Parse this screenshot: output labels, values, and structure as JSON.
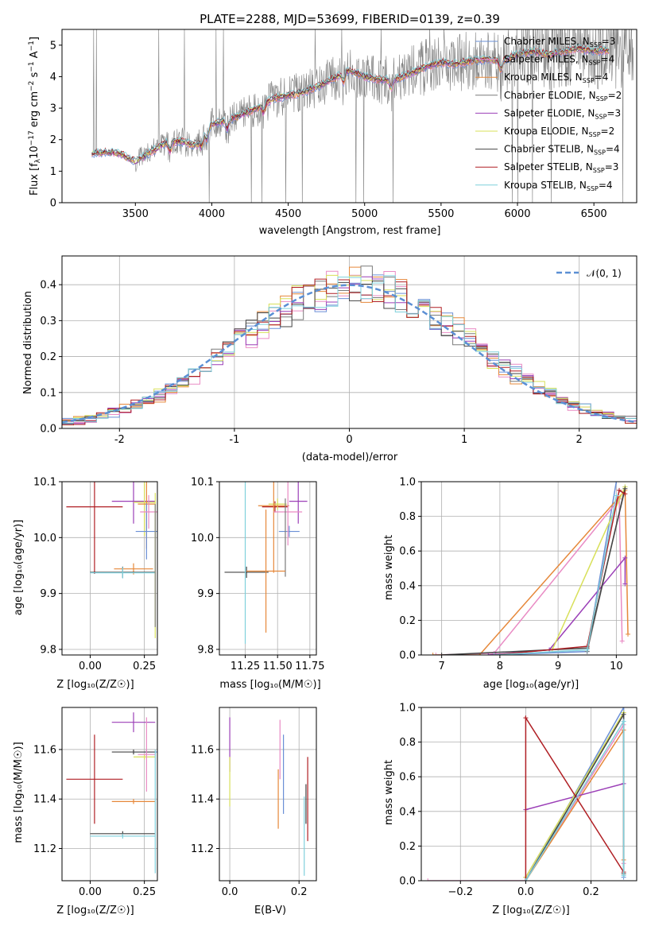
{
  "chart_data": [
    {
      "id": "spectrum",
      "type": "line",
      "title": "PLATE=2288, MJD=53699, FIBERID=0139, z=0.39",
      "xlabel": "wavelength [Angstrom, rest frame]",
      "ylabel_parts": [
        "Flux [f",
        "λ",
        "10",
        "−17",
        " erg cm",
        "−2",
        " s",
        "−1",
        " A",
        "−1",
        "]"
      ],
      "xlim": [
        3020,
        6780
      ],
      "ylim": [
        0,
        5.5
      ],
      "xticks": [
        3500,
        4000,
        4500,
        5000,
        5500,
        6000,
        6500
      ],
      "yticks": [
        0,
        1,
        2,
        3,
        4,
        5
      ],
      "grid": false,
      "legend_position": "right",
      "continuum": [
        [
          3220,
          1.55
        ],
        [
          3300,
          1.6
        ],
        [
          3400,
          1.55
        ],
        [
          3500,
          1.3
        ],
        [
          3600,
          1.6
        ],
        [
          3700,
          1.9
        ],
        [
          3800,
          1.95
        ],
        [
          3900,
          1.8
        ],
        [
          4000,
          2.5
        ],
        [
          4100,
          2.6
        ],
        [
          4200,
          2.8
        ],
        [
          4300,
          3.0
        ],
        [
          4400,
          3.3
        ],
        [
          4500,
          3.4
        ],
        [
          4600,
          3.5
        ],
        [
          4700,
          3.7
        ],
        [
          4800,
          3.95
        ],
        [
          4900,
          4.2
        ],
        [
          5000,
          4.0
        ],
        [
          5100,
          3.9
        ],
        [
          5200,
          3.9
        ],
        [
          5300,
          4.1
        ],
        [
          5400,
          4.3
        ],
        [
          5500,
          4.45
        ],
        [
          5600,
          4.4
        ],
        [
          5700,
          4.5
        ],
        [
          5800,
          4.55
        ],
        [
          5900,
          4.5
        ],
        [
          6000,
          4.7
        ],
        [
          6100,
          4.8
        ],
        [
          6200,
          4.7
        ],
        [
          6300,
          4.8
        ],
        [
          6400,
          4.9
        ],
        [
          6500,
          4.8
        ],
        [
          6600,
          4.85
        ]
      ],
      "series": [
        {
          "name": "Chabrier MILES, N",
          "sub": "SSP",
          "tail": "=3",
          "color": "#6a8fd6"
        },
        {
          "name": "Salpeter MILES, N",
          "sub": "SSP",
          "tail": "=4",
          "color": "#e98bc4"
        },
        {
          "name": "Kroupa MILES, N",
          "sub": "SSP",
          "tail": "=4",
          "color": "#e6883a"
        },
        {
          "name": "Chabrier ELODIE, N",
          "sub": "SSP",
          "tail": "=2",
          "color": "#7a7a7a"
        },
        {
          "name": "Salpeter ELODIE, N",
          "sub": "SSP",
          "tail": "=3",
          "color": "#9b3fb7"
        },
        {
          "name": "Kroupa ELODIE, N",
          "sub": "SSP",
          "tail": "=2",
          "color": "#d8e05a"
        },
        {
          "name": "Chabrier STELIB, N",
          "sub": "SSP",
          "tail": "=4",
          "color": "#444444"
        },
        {
          "name": "Salpeter STELIB, N",
          "sub": "SSP",
          "tail": "=3",
          "color": "#b01f24"
        },
        {
          "name": "Kroupa STELIB, N",
          "sub": "SSP",
          "tail": "=4",
          "color": "#7fd0dc"
        }
      ]
    },
    {
      "id": "residuals",
      "type": "line",
      "xlabel": "(data-model)/error",
      "ylabel": "Normed distribution",
      "xlim": [
        -2.5,
        2.5
      ],
      "ylim": [
        0,
        0.48
      ],
      "xticks": [
        -2,
        -1,
        0,
        1,
        2
      ],
      "yticks": [
        0.0,
        0.1,
        0.2,
        0.3,
        0.4
      ],
      "ytick_labels": [
        "0.0",
        "0.1",
        "0.2",
        "0.3",
        "0.4"
      ],
      "grid": true,
      "legend_position": "top-right",
      "legend": [
        "𝒩(0, 1)"
      ],
      "gauss_color": "#5b8fd4",
      "bin_width": 0.1
    },
    {
      "id": "age-vs-Z",
      "type": "scatter",
      "xlabel": "Z [log₁₀(Z/Z☉)]",
      "ylabel": "age  [log₁₀(age/yr)]",
      "xlim": [
        -0.13,
        0.31
      ],
      "ylim": [
        9.79,
        10.1
      ],
      "xticks": [
        0.0,
        0.25
      ],
      "xtick_labels": [
        "0.00",
        "0.25"
      ],
      "yticks": [
        9.8,
        9.9,
        10.0,
        10.1
      ],
      "ytick_labels": [
        "9.8",
        "9.9",
        "10.0",
        "10.1"
      ],
      "grid": true,
      "points": [
        {
          "x": 0.02,
          "y": 10.055,
          "xerr": 0.13,
          "yerr": 0.12,
          "c": 7
        },
        {
          "x": 0.2,
          "y": 10.065,
          "xerr": 0.1,
          "yerr": 0.04,
          "c": 4
        },
        {
          "x": 0.25,
          "y": 10.063,
          "xerr": 0.05,
          "yerr": 0.06,
          "c": 5
        },
        {
          "x": 0.26,
          "y": 10.06,
          "xerr": 0.04,
          "yerr": 0.08,
          "c": 2
        },
        {
          "x": 0.26,
          "y": 10.011,
          "xerr": 0.05,
          "yerr": 0.05,
          "c": 0
        },
        {
          "x": 0.27,
          "y": 10.046,
          "xerr": 0.04,
          "yerr": 0.03,
          "c": 1
        },
        {
          "x": 0.2,
          "y": 9.944,
          "xerr": 0.09,
          "yerr": 0.01,
          "c": 2
        },
        {
          "x": 0.15,
          "y": 9.938,
          "xerr": 0.15,
          "yerr": 0.01,
          "c": 6
        },
        {
          "x": 0.15,
          "y": 9.937,
          "xerr": 0.15,
          "yerr": 0.01,
          "c": 8
        },
        {
          "x": 0.3,
          "y": 9.95,
          "xerr": 0.0,
          "yerr": 0.13,
          "c": 5
        },
        {
          "x": 0.3,
          "y": 9.95,
          "xerr": 0.0,
          "yerr": 0.11,
          "c": 3
        }
      ]
    },
    {
      "id": "age-vs-mass",
      "type": "scatter",
      "xlabel": "mass [log₁₀(M/M☉)]",
      "ylabel": "",
      "xlim": [
        11.05,
        11.8
      ],
      "ylim": [
        9.79,
        10.1
      ],
      "xticks": [
        11.25,
        11.5,
        11.75
      ],
      "xtick_labels": [
        "11.25",
        "11.50",
        "11.75"
      ],
      "yticks": [
        9.8,
        9.9,
        10.0,
        10.1
      ],
      "ytick_labels": [
        "9.8",
        "9.9",
        "10.0",
        "10.1"
      ],
      "grid": true,
      "points": [
        {
          "x": 11.48,
          "y": 10.055,
          "xerr": 0.1,
          "yerr": 0.01,
          "c": 7
        },
        {
          "x": 11.66,
          "y": 10.065,
          "xerr": 0.07,
          "yerr": 0.04,
          "c": 4
        },
        {
          "x": 11.5,
          "y": 10.06,
          "xerr": 0.07,
          "yerr": 0.01,
          "c": 5
        },
        {
          "x": 11.47,
          "y": 10.057,
          "xerr": 0.12,
          "yerr": 0.12,
          "c": 2
        },
        {
          "x": 11.59,
          "y": 10.011,
          "xerr": 0.08,
          "yerr": 0.01,
          "c": 0
        },
        {
          "x": 11.58,
          "y": 10.046,
          "xerr": 0.11,
          "yerr": 0.06,
          "c": 1
        },
        {
          "x": 11.26,
          "y": 9.938,
          "xerr": 0.17,
          "yerr": 0.01,
          "c": 6
        },
        {
          "x": 11.25,
          "y": 9.96,
          "xerr": 0.0,
          "yerr": 0.15,
          "c": 8
        },
        {
          "x": 11.56,
          "y": 10.0,
          "xerr": 0.0,
          "yerr": 0.07,
          "c": 3
        },
        {
          "x": 11.41,
          "y": 9.94,
          "xerr": 0.15,
          "yerr": 0.11,
          "c": 2
        }
      ]
    },
    {
      "id": "weight-vs-age",
      "type": "line",
      "xlabel": "age  [log₁₀(age/yr)]",
      "ylabel": "mass weight",
      "xlim": [
        6.65,
        10.35
      ],
      "ylim": [
        0,
        1.0
      ],
      "xticks": [
        7,
        8,
        9,
        10
      ],
      "yticks": [
        0.0,
        0.2,
        0.4,
        0.6,
        0.8,
        1.0
      ],
      "ytick_labels": [
        "0.0",
        "0.2",
        "0.4",
        "0.6",
        "0.8",
        "1.0"
      ],
      "grid": true,
      "series": [
        {
          "c": 0,
          "points": [
            [
              7.9,
              0
            ],
            [
              9.5,
              0.02
            ],
            [
              10.0,
              1.0
            ]
          ]
        },
        {
          "c": 1,
          "points": [
            [
              6.9,
              0
            ],
            [
              7.9,
              0.01
            ],
            [
              10.05,
              0.9
            ],
            [
              10.1,
              0.08
            ]
          ]
        },
        {
          "c": 2,
          "points": [
            [
              6.85,
              0
            ],
            [
              7.65,
              0
            ],
            [
              10.15,
              0.95
            ],
            [
              10.2,
              0.12
            ]
          ]
        },
        {
          "c": 3,
          "points": [
            [
              9.5,
              0.02
            ],
            [
              10.15,
              0.97
            ]
          ]
        },
        {
          "c": 4,
          "points": [
            [
              7.8,
              0
            ],
            [
              8.85,
              0.03
            ],
            [
              10.15,
              0.56
            ],
            [
              10.15,
              0.41
            ]
          ]
        },
        {
          "c": 5,
          "points": [
            [
              8.9,
              0.03
            ],
            [
              10.15,
              0.97
            ]
          ]
        },
        {
          "c": 6,
          "points": [
            [
              7.0,
              0
            ],
            [
              9.5,
              0.04
            ],
            [
              10.15,
              0.96
            ]
          ]
        },
        {
          "c": 7,
          "points": [
            [
              7.9,
              0
            ],
            [
              9.5,
              0.05
            ],
            [
              10.05,
              0.95
            ],
            [
              10.15,
              0.93
            ]
          ]
        },
        {
          "c": 8,
          "points": [
            [
              7.9,
              0
            ],
            [
              9.5,
              0.03
            ],
            [
              10.0,
              0.92
            ]
          ]
        }
      ]
    },
    {
      "id": "mass-vs-Z",
      "type": "scatter",
      "xlabel": "Z [log₁₀(Z/Z☉)]",
      "ylabel": "mass [log₁₀(M/M☉)]",
      "xlim": [
        -0.13,
        0.31
      ],
      "ylim": [
        11.07,
        11.77
      ],
      "xticks": [
        0.0,
        0.25
      ],
      "xtick_labels": [
        "0.00",
        "0.25"
      ],
      "yticks": [
        11.2,
        11.4,
        11.6
      ],
      "ytick_labels": [
        "11.2",
        "11.4",
        "11.6"
      ],
      "grid": true,
      "points": [
        {
          "x": 0.02,
          "y": 11.48,
          "xerr": 0.13,
          "yerr": 0.18,
          "c": 7
        },
        {
          "x": 0.2,
          "y": 11.71,
          "xerr": 0.1,
          "yerr": 0.04,
          "c": 4
        },
        {
          "x": 0.26,
          "y": 11.59,
          "xerr": 0.06,
          "yerr": 0.01,
          "c": 0
        },
        {
          "x": 0.2,
          "y": 11.59,
          "xerr": 0.1,
          "yerr": 0.01,
          "c": 6
        },
        {
          "x": 0.25,
          "y": 11.57,
          "xerr": 0.05,
          "yerr": 0.01,
          "c": 5
        },
        {
          "x": 0.26,
          "y": 11.58,
          "xerr": 0.04,
          "yerr": 0.15,
          "c": 1
        },
        {
          "x": 0.2,
          "y": 11.39,
          "xerr": 0.1,
          "yerr": 0.01,
          "c": 2
        },
        {
          "x": 0.15,
          "y": 11.26,
          "xerr": 0.15,
          "yerr": 0.01,
          "c": 6
        },
        {
          "x": 0.15,
          "y": 11.25,
          "xerr": 0.15,
          "yerr": 0.01,
          "c": 8
        },
        {
          "x": 0.3,
          "y": 11.35,
          "xerr": 0.0,
          "yerr": 0.25,
          "c": 8
        }
      ]
    },
    {
      "id": "mass-vs-ebv",
      "type": "scatter",
      "xlabel": "E(B-V)",
      "ylabel": "",
      "xlim": [
        -0.03,
        0.25
      ],
      "ylim": [
        11.07,
        11.77
      ],
      "xticks": [
        0.0,
        0.2
      ],
      "xtick_labels": [
        "0.0",
        "0.2"
      ],
      "yticks": [
        11.2,
        11.4,
        11.6
      ],
      "ytick_labels": [
        "11.2",
        "11.4",
        "11.6"
      ],
      "grid": true,
      "points": [
        {
          "x": 0.0,
          "y": 11.62,
          "xerr": 0.0,
          "yerr": 0.11,
          "c": 4
        },
        {
          "x": 0.0,
          "y": 11.47,
          "xerr": 0.0,
          "yerr": 0.1,
          "c": 5
        },
        {
          "x": 0.14,
          "y": 11.4,
          "xerr": 0.0,
          "yerr": 0.12,
          "c": 2
        },
        {
          "x": 0.145,
          "y": 11.6,
          "xerr": 0.0,
          "yerr": 0.12,
          "c": 1
        },
        {
          "x": 0.155,
          "y": 11.5,
          "xerr": 0.0,
          "yerr": 0.16,
          "c": 0
        },
        {
          "x": 0.22,
          "y": 11.38,
          "xerr": 0.0,
          "yerr": 0.08,
          "c": 6
        },
        {
          "x": 0.225,
          "y": 11.4,
          "xerr": 0.0,
          "yerr": 0.17,
          "c": 7
        },
        {
          "x": 0.215,
          "y": 11.25,
          "xerr": 0.0,
          "yerr": 0.16,
          "c": 8
        }
      ]
    },
    {
      "id": "weight-vs-Z",
      "type": "line",
      "xlabel": "Z [log₁₀(Z/Z☉)]",
      "ylabel": "mass weight",
      "xlim": [
        -0.32,
        0.34
      ],
      "ylim": [
        0,
        1.0
      ],
      "xticks": [
        -0.2,
        0.0,
        0.2
      ],
      "xtick_labels": [
        "−0.2",
        "0.0",
        "0.2"
      ],
      "yticks": [
        0.0,
        0.2,
        0.4,
        0.6,
        0.8,
        1.0
      ],
      "ytick_labels": [
        "0.0",
        "0.2",
        "0.4",
        "0.6",
        "0.8",
        "1.0"
      ],
      "grid": true,
      "series": [
        {
          "c": 0,
          "points": [
            [
              0.0,
              0.0
            ],
            [
              0.3,
              1.0
            ],
            [
              0.3,
              0.02
            ]
          ]
        },
        {
          "c": 1,
          "points": [
            [
              -0.3,
              0.0
            ],
            [
              0.0,
              0.0
            ],
            [
              0.3,
              0.9
            ],
            [
              0.3,
              0.1
            ]
          ]
        },
        {
          "c": 2,
          "points": [
            [
              0.0,
              0.0
            ],
            [
              0.3,
              0.87
            ],
            [
              0.3,
              0.12
            ]
          ]
        },
        {
          "c": 3,
          "points": [
            [
              0.0,
              0.02
            ],
            [
              0.3,
              0.97
            ]
          ]
        },
        {
          "c": 4,
          "points": [
            [
              0.0,
              0.41
            ],
            [
              0.3,
              0.56
            ]
          ]
        },
        {
          "c": 5,
          "points": [
            [
              0.0,
              0.02
            ],
            [
              0.3,
              0.97
            ]
          ]
        },
        {
          "c": 6,
          "points": [
            [
              0.0,
              0.0
            ],
            [
              0.3,
              0.96
            ],
            [
              0.3,
              0.04
            ]
          ]
        },
        {
          "c": 7,
          "points": [
            [
              0.0,
              0.0
            ],
            [
              0.0,
              0.94
            ],
            [
              0.3,
              0.05
            ]
          ]
        },
        {
          "c": 8,
          "points": [
            [
              0.0,
              0.0
            ],
            [
              0.3,
              0.92
            ],
            [
              0.3,
              0.03
            ]
          ]
        }
      ]
    }
  ]
}
